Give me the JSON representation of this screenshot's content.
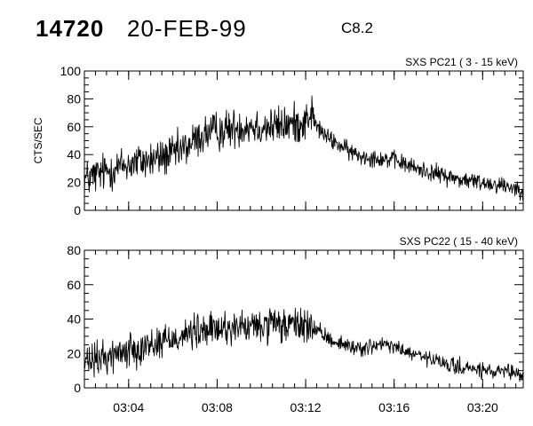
{
  "header": {
    "event_id": "14720",
    "date": "20-FEB-99",
    "goes_class": "C8.2"
  },
  "chart_data": [
    {
      "type": "line",
      "title": "SXS PC21  (  3 - 15 keV)",
      "ylabel": "CTS/SEC",
      "xlabel": "",
      "x_unit": "UT time",
      "xlim": [
        "03:02:00",
        "03:21:50"
      ],
      "ylim": [
        0,
        100
      ],
      "yticks": [
        0,
        20,
        40,
        60,
        80,
        100
      ],
      "xticks": [
        "03:04",
        "03:08",
        "03:12",
        "03:16",
        "03:20"
      ],
      "grid": false,
      "noise_amplitude": 7,
      "series": [
        {
          "time_minutes_after_0300": [
            2.0,
            2.5,
            3.0,
            3.5,
            4.0,
            4.5,
            5.0,
            5.5,
            6.0,
            6.5,
            7.0,
            7.5,
            8.0,
            8.5,
            9.0,
            9.5,
            10.0,
            10.5,
            11.0,
            11.5,
            12.0,
            12.25,
            12.5,
            13.0,
            13.5,
            14.0,
            14.5,
            15.0,
            15.5,
            16.0,
            16.5,
            17.0,
            17.5,
            18.0,
            18.5,
            19.0,
            19.5,
            20.0,
            20.5,
            21.0,
            21.5,
            21.83
          ],
          "values": [
            22,
            25,
            28,
            31,
            33,
            35,
            36,
            38,
            40,
            44,
            50,
            55,
            57,
            58,
            60,
            61,
            60,
            60,
            61,
            62,
            64,
            70,
            60,
            52,
            47,
            42,
            39,
            38,
            37,
            36,
            33,
            30,
            28,
            26,
            24,
            22,
            21,
            20,
            19,
            18,
            16,
            15
          ]
        }
      ]
    },
    {
      "type": "line",
      "title": "SXS PC22  ( 15 - 40 keV)",
      "ylabel": "",
      "xlabel": "",
      "x_unit": "UT time",
      "xlim": [
        "03:02:00",
        "03:21:50"
      ],
      "ylim": [
        0,
        80
      ],
      "yticks": [
        0,
        20,
        40,
        60,
        80
      ],
      "xticks": [
        "03:04",
        "03:08",
        "03:12",
        "03:16",
        "03:20"
      ],
      "grid": false,
      "noise_amplitude": 5,
      "series": [
        {
          "time_minutes_after_0300": [
            2.0,
            2.5,
            3.0,
            3.5,
            4.0,
            4.5,
            5.0,
            5.5,
            6.0,
            6.5,
            7.0,
            7.5,
            8.0,
            8.5,
            9.0,
            9.5,
            10.0,
            10.5,
            11.0,
            11.5,
            12.0,
            12.25,
            12.5,
            13.0,
            13.5,
            14.0,
            14.5,
            15.0,
            15.5,
            16.0,
            16.5,
            17.0,
            17.5,
            18.0,
            18.5,
            19.0,
            19.5,
            20.0,
            20.5,
            21.0,
            21.5,
            21.83
          ],
          "values": [
            14,
            16,
            18,
            20,
            22,
            24,
            25,
            27,
            29,
            31,
            32,
            33,
            34,
            35,
            35,
            35,
            36,
            36,
            36,
            36,
            37,
            35,
            33,
            29,
            26,
            24,
            23,
            24,
            25,
            24,
            21,
            19,
            17,
            15,
            13,
            12,
            11,
            10,
            9,
            9,
            8,
            7
          ]
        }
      ]
    }
  ]
}
